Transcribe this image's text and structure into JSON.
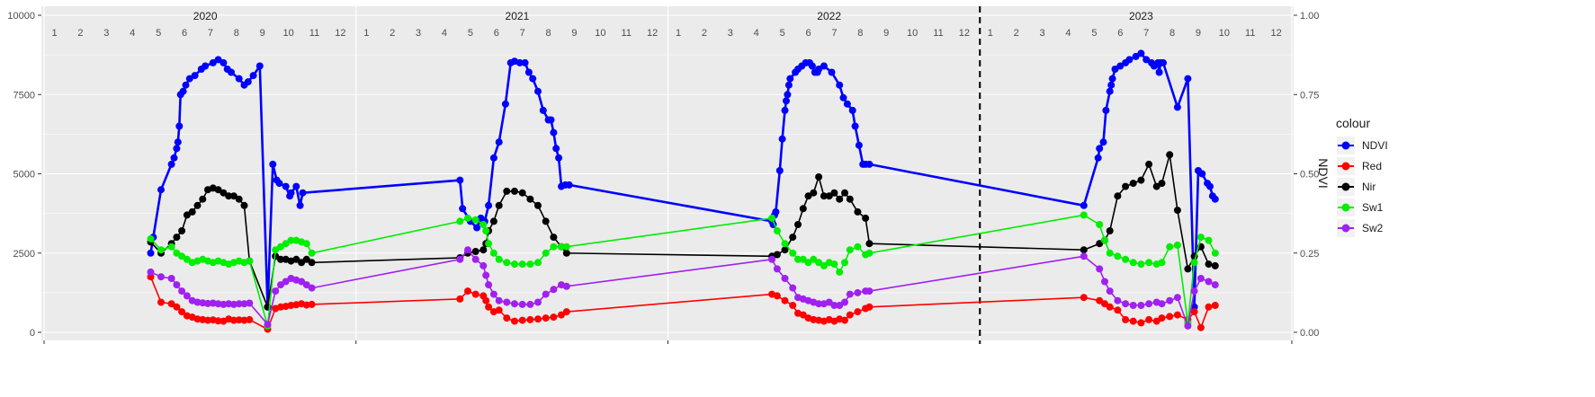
{
  "chart_data": {
    "type": "line",
    "title": "",
    "xlabel": "",
    "ylabel": "",
    "y2label": "NDVI",
    "ylim": [
      0,
      10000
    ],
    "y2lim": [
      0,
      1
    ],
    "x_unit": "month index since Jan 2020",
    "xlim": [
      0,
      48
    ],
    "yticks": [
      "0",
      "2500",
      "5000",
      "7500",
      "10000"
    ],
    "y2ticks": [
      "0.00",
      "0.25",
      "0.50",
      "0.75",
      "1.00"
    ],
    "years": [
      "2020",
      "2021",
      "2022",
      "2023"
    ],
    "months": [
      "1",
      "2",
      "3",
      "4",
      "5",
      "6",
      "7",
      "8",
      "9",
      "10",
      "11",
      "12"
    ],
    "dashed_vline_x": 36,
    "legend": {
      "title": "colour",
      "position": "right"
    },
    "series": [
      {
        "name": "NDVI",
        "color": "#0000ff",
        "x": [
          4.1,
          4.2,
          4.5,
          4.9,
          5.0,
          5.1,
          5.15,
          5.2,
          5.25,
          5.35,
          5.45,
          5.6,
          5.8,
          6.05,
          6.2,
          6.5,
          6.7,
          6.9,
          7.05,
          7.2,
          7.5,
          7.7,
          7.85,
          8.05,
          8.3,
          8.6,
          8.8,
          8.95,
          9.05,
          9.3,
          9.45,
          9.5,
          9.7,
          9.85,
          9.95,
          16.0,
          16.1,
          16.4,
          16.65,
          16.8,
          16.95,
          17.1,
          17.3,
          17.5,
          17.75,
          17.95,
          18.1,
          18.3,
          18.5,
          18.65,
          18.8,
          19.0,
          19.2,
          19.4,
          19.5,
          19.6,
          19.7,
          19.8,
          19.9,
          20.05,
          20.2,
          28.0,
          28.05,
          28.1,
          28.15,
          28.3,
          28.4,
          28.5,
          28.55,
          28.6,
          28.65,
          28.7,
          28.9,
          29.0,
          29.15,
          29.3,
          29.45,
          29.55,
          29.65,
          29.75,
          29.8,
          30.0,
          30.3,
          30.6,
          30.75,
          30.9,
          31.1,
          31.2,
          31.35,
          31.5,
          31.6,
          31.75,
          40.0,
          40.55,
          40.6,
          40.75,
          40.85,
          41.0,
          41.05,
          41.1,
          41.2,
          41.4,
          41.6,
          41.75,
          42.0,
          42.2,
          42.4,
          42.6,
          42.7,
          42.85,
          42.9,
          42.95,
          43.05,
          43.6,
          44.0,
          44.25,
          44.4,
          44.55,
          44.75,
          44.85,
          44.95,
          45.05
        ],
        "y": [
          0.25,
          0.3,
          0.45,
          0.53,
          0.55,
          0.58,
          0.6,
          0.65,
          0.75,
          0.76,
          0.78,
          0.8,
          0.81,
          0.83,
          0.84,
          0.85,
          0.86,
          0.85,
          0.83,
          0.82,
          0.8,
          0.78,
          0.79,
          0.81,
          0.84,
          0.08,
          0.53,
          0.48,
          0.47,
          0.46,
          0.43,
          0.44,
          0.46,
          0.4,
          0.44,
          0.48,
          0.39,
          0.35,
          0.33,
          0.36,
          0.35,
          0.4,
          0.55,
          0.6,
          0.72,
          0.85,
          0.855,
          0.85,
          0.85,
          0.82,
          0.8,
          0.76,
          0.7,
          0.67,
          0.67,
          0.63,
          0.58,
          0.55,
          0.46,
          0.465,
          0.465,
          0.35,
          0.34,
          0.37,
          0.38,
          0.51,
          0.61,
          0.7,
          0.73,
          0.75,
          0.78,
          0.8,
          0.82,
          0.83,
          0.84,
          0.85,
          0.85,
          0.84,
          0.82,
          0.82,
          0.83,
          0.84,
          0.82,
          0.78,
          0.74,
          0.72,
          0.7,
          0.65,
          0.59,
          0.53,
          0.53,
          0.53,
          0.4,
          0.55,
          0.58,
          0.6,
          0.7,
          0.76,
          0.78,
          0.8,
          0.83,
          0.84,
          0.85,
          0.86,
          0.87,
          0.88,
          0.86,
          0.85,
          0.84,
          0.85,
          0.82,
          0.85,
          0.85,
          0.71,
          0.8,
          0.08,
          0.51,
          0.5,
          0.47,
          0.46,
          0.43,
          0.42
        ]
      },
      {
        "name": "Red",
        "color": "#ff0000",
        "x": [
          4.1,
          4.5,
          4.9,
          5.1,
          5.3,
          5.5,
          5.7,
          5.9,
          6.1,
          6.3,
          6.5,
          6.7,
          6.9,
          7.1,
          7.3,
          7.5,
          7.7,
          7.9,
          8.6,
          8.9,
          9.1,
          9.3,
          9.5,
          9.7,
          9.9,
          10.1,
          10.3,
          16.0,
          16.3,
          16.6,
          16.9,
          17.0,
          17.1,
          17.3,
          17.5,
          17.8,
          18.1,
          18.4,
          18.7,
          19.0,
          19.3,
          19.6,
          19.9,
          20.1,
          28.0,
          28.2,
          28.5,
          28.8,
          29.0,
          29.2,
          29.4,
          29.6,
          29.8,
          30.0,
          30.2,
          30.4,
          30.6,
          30.8,
          31.0,
          31.3,
          31.6,
          31.75,
          40.0,
          40.6,
          40.8,
          41.0,
          41.3,
          41.6,
          41.9,
          42.2,
          42.5,
          42.8,
          43.0,
          43.3,
          43.6,
          44.0,
          44.25,
          44.5,
          44.8,
          45.05
        ],
        "y": [
          1750,
          950,
          900,
          800,
          650,
          520,
          480,
          420,
          400,
          380,
          390,
          360,
          350,
          420,
          380,
          390,
          380,
          400,
          100,
          750,
          800,
          820,
          850,
          870,
          900,
          860,
          880,
          1050,
          1300,
          1200,
          1150,
          1000,
          800,
          650,
          700,
          450,
          350,
          380,
          400,
          420,
          450,
          480,
          550,
          650,
          1200,
          1150,
          1000,
          850,
          600,
          550,
          450,
          400,
          380,
          350,
          400,
          350,
          420,
          380,
          550,
          650,
          750,
          800,
          1100,
          1000,
          900,
          800,
          700,
          400,
          350,
          300,
          400,
          350,
          450,
          500,
          550,
          400,
          650,
          150,
          800,
          850
        ]
      },
      {
        "name": "Nir",
        "color": "#000000",
        "x": [
          4.1,
          4.5,
          4.9,
          5.1,
          5.3,
          5.5,
          5.7,
          5.9,
          6.1,
          6.3,
          6.5,
          6.7,
          6.9,
          7.1,
          7.3,
          7.5,
          7.7,
          7.9,
          8.6,
          8.9,
          9.1,
          9.3,
          9.5,
          9.7,
          9.9,
          10.1,
          10.3,
          16.0,
          16.3,
          16.6,
          16.9,
          17.0,
          17.1,
          17.3,
          17.5,
          17.8,
          18.1,
          18.4,
          18.7,
          19.0,
          19.3,
          19.6,
          19.9,
          20.1,
          28.0,
          28.2,
          28.5,
          28.8,
          29.0,
          29.2,
          29.4,
          29.6,
          29.8,
          30.0,
          30.2,
          30.4,
          30.6,
          30.8,
          31.0,
          31.3,
          31.6,
          31.75,
          40.0,
          40.6,
          40.8,
          41.0,
          41.3,
          41.6,
          41.9,
          42.2,
          42.5,
          42.8,
          43.0,
          43.3,
          43.6,
          44.0,
          44.25,
          44.5,
          44.8,
          45.05
        ],
        "y": [
          2850,
          2500,
          2800,
          3000,
          3200,
          3700,
          3800,
          4000,
          4200,
          4500,
          4550,
          4500,
          4400,
          4300,
          4300,
          4200,
          4000,
          2250,
          800,
          2400,
          2300,
          2300,
          2250,
          2300,
          2200,
          2300,
          2200,
          2350,
          2500,
          2550,
          2600,
          2800,
          3200,
          3500,
          4000,
          4450,
          4450,
          4400,
          4200,
          4000,
          3500,
          3000,
          2700,
          2500,
          2400,
          2450,
          2600,
          3000,
          3400,
          3900,
          4300,
          4400,
          4900,
          4300,
          4300,
          4400,
          4200,
          4400,
          4200,
          3800,
          3600,
          2800,
          2600,
          2800,
          2900,
          3200,
          4300,
          4600,
          4700,
          4800,
          5300,
          4600,
          4700,
          5600,
          3850,
          2000,
          2400,
          2700,
          2150,
          2100
        ]
      },
      {
        "name": "Sw1",
        "color": "#00ee00",
        "x": [
          4.1,
          4.5,
          4.9,
          5.1,
          5.3,
          5.5,
          5.7,
          5.9,
          6.1,
          6.3,
          6.5,
          6.7,
          6.9,
          7.1,
          7.3,
          7.5,
          7.7,
          7.9,
          8.6,
          8.9,
          9.1,
          9.3,
          9.5,
          9.7,
          9.9,
          10.1,
          10.3,
          16.0,
          16.3,
          16.6,
          16.9,
          17.0,
          17.1,
          17.3,
          17.5,
          17.8,
          18.1,
          18.4,
          18.7,
          19.0,
          19.3,
          19.6,
          19.9,
          20.1,
          28.0,
          28.2,
          28.5,
          28.8,
          29.0,
          29.2,
          29.4,
          29.6,
          29.8,
          30.0,
          30.2,
          30.4,
          30.6,
          30.8,
          31.0,
          31.3,
          31.6,
          31.75,
          40.0,
          40.6,
          40.8,
          41.0,
          41.3,
          41.6,
          41.9,
          42.2,
          42.5,
          42.8,
          43.0,
          43.3,
          43.6,
          44.0,
          44.25,
          44.5,
          44.8,
          45.05
        ],
        "y": [
          2950,
          2600,
          2700,
          2500,
          2400,
          2300,
          2200,
          2250,
          2300,
          2250,
          2200,
          2250,
          2200,
          2150,
          2200,
          2250,
          2200,
          2250,
          200,
          2600,
          2700,
          2800,
          2900,
          2900,
          2850,
          2800,
          2500,
          3500,
          3600,
          3550,
          3400,
          3200,
          2800,
          2500,
          2300,
          2200,
          2150,
          2150,
          2150,
          2200,
          2500,
          2700,
          2700,
          2700,
          3600,
          3200,
          2800,
          2500,
          2300,
          2300,
          2200,
          2300,
          2200,
          2100,
          2200,
          2150,
          1900,
          2200,
          2600,
          2700,
          2450,
          2500,
          3700,
          3400,
          2900,
          2500,
          2400,
          2300,
          2200,
          2150,
          2200,
          2150,
          2200,
          2700,
          2750,
          300,
          2200,
          3000,
          2900,
          2500
        ]
      },
      {
        "name": "Sw2",
        "color": "#a020f0",
        "x": [
          4.1,
          4.5,
          4.9,
          5.1,
          5.3,
          5.5,
          5.7,
          5.9,
          6.1,
          6.3,
          6.5,
          6.7,
          6.9,
          7.1,
          7.3,
          7.5,
          7.7,
          7.9,
          8.6,
          8.9,
          9.1,
          9.3,
          9.5,
          9.7,
          9.9,
          10.1,
          10.3,
          16.0,
          16.3,
          16.6,
          16.9,
          17.0,
          17.1,
          17.3,
          17.5,
          17.8,
          18.1,
          18.4,
          18.7,
          19.0,
          19.3,
          19.6,
          19.9,
          20.1,
          28.0,
          28.2,
          28.5,
          28.8,
          29.0,
          29.2,
          29.4,
          29.6,
          29.8,
          30.0,
          30.2,
          30.4,
          30.6,
          30.8,
          31.0,
          31.3,
          31.6,
          31.75,
          40.0,
          40.6,
          40.8,
          41.0,
          41.3,
          41.6,
          41.9,
          42.2,
          42.5,
          42.8,
          43.0,
          43.3,
          43.6,
          44.0,
          44.25,
          44.5,
          44.8,
          45.05
        ],
        "y": [
          1900,
          1750,
          1700,
          1500,
          1300,
          1150,
          1000,
          950,
          930,
          910,
          920,
          900,
          880,
          900,
          880,
          900,
          900,
          920,
          250,
          1300,
          1500,
          1600,
          1700,
          1650,
          1600,
          1500,
          1400,
          2300,
          2600,
          2300,
          2100,
          1800,
          1500,
          1200,
          1000,
          950,
          900,
          880,
          880,
          950,
          1200,
          1350,
          1500,
          1450,
          2300,
          2000,
          1700,
          1400,
          1100,
          1050,
          1000,
          950,
          900,
          900,
          950,
          850,
          850,
          950,
          1200,
          1250,
          1300,
          1300,
          2400,
          2000,
          1600,
          1300,
          1000,
          900,
          850,
          850,
          900,
          950,
          900,
          1000,
          1100,
          200,
          1300,
          1700,
          1600,
          1500
        ]
      }
    ]
  }
}
